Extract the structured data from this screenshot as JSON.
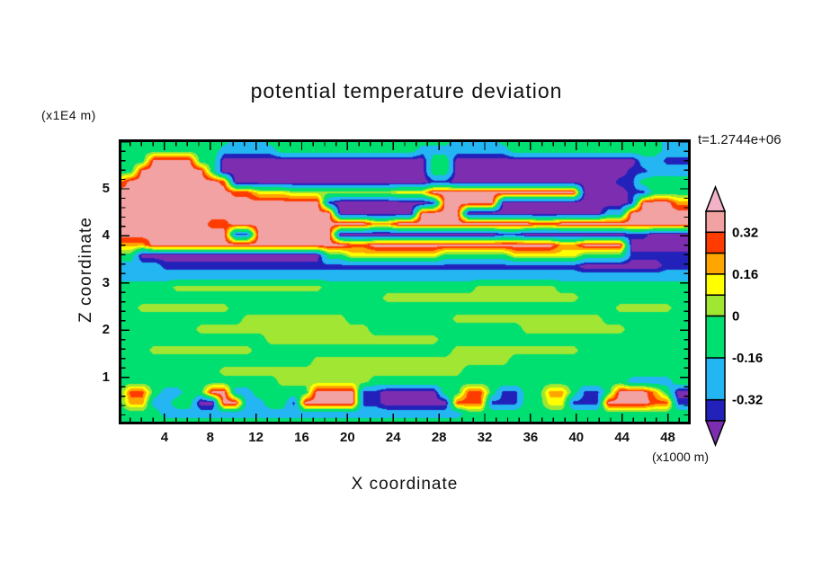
{
  "title": "potential temperature deviation",
  "annotations": {
    "z_unit": "(x1E4 m)",
    "x_unit": "(x1000 m)",
    "time": "t=1.2744e+06"
  },
  "axes": {
    "x_label": "X coordinate",
    "z_label": "Z coordinate",
    "x_range": [
      0,
      50
    ],
    "z_range": [
      0,
      6.05
    ],
    "x_major_ticks": [
      4,
      8,
      12,
      16,
      20,
      24,
      28,
      32,
      36,
      40,
      44,
      48
    ],
    "x_minor_step": 1,
    "z_major_ticks": [
      5,
      4,
      3,
      2,
      1
    ],
    "z_minor_step": 0.2
  },
  "chart_data": {
    "type": "heatmap",
    "title": "potential temperature deviation",
    "xlabel": "X coordinate (x1000 m)",
    "ylabel": "Z coordinate (x1E4 m)",
    "time_stamp": "t=1.2744e+06",
    "x_range": [
      0,
      50
    ],
    "z_range": [
      0,
      6.05
    ],
    "contour_levels": [
      -0.4,
      -0.32,
      -0.16,
      0,
      0.08,
      0.16,
      0.24,
      0.32,
      0.4
    ],
    "bands": [
      {
        "max": -0.4,
        "color": "#7D2EB0"
      },
      {
        "max": -0.32,
        "color": "#2222BB"
      },
      {
        "max": -0.16,
        "color": "#23B6F2"
      },
      {
        "max": 0.0,
        "color": "#00E070"
      },
      {
        "max": 0.08,
        "color": "#A0E632"
      },
      {
        "max": 0.16,
        "color": "#FFFF00"
      },
      {
        "max": 0.24,
        "color": "#FFA500"
      },
      {
        "max": 0.32,
        "color": "#FF3C00"
      },
      {
        "max": 0.4,
        "color": "#F2A2A2"
      },
      {
        "max": 9.0,
        "color": "#F2B3C8"
      }
    ],
    "colorbar": {
      "top_cap_color": "#F2B3C8",
      "bottom_cap_color": "#7D2EB0",
      "segments_top_to_bottom": [
        {
          "color": "#F2A2A2",
          "units": 1,
          "range": "0.32..0.40"
        },
        {
          "color": "#FF3C00",
          "units": 1,
          "range": "0.24..0.32"
        },
        {
          "color": "#FFA500",
          "units": 1,
          "range": "0.16..0.24"
        },
        {
          "color": "#FFFF00",
          "units": 1,
          "range": "0.08..0.16"
        },
        {
          "color": "#A0E632",
          "units": 1,
          "range": "0.00..0.08"
        },
        {
          "color": "#00E070",
          "units": 2,
          "range": "-0.16..0.00"
        },
        {
          "color": "#23B6F2",
          "units": 2,
          "range": "-0.32..-0.16"
        },
        {
          "color": "#2222BB",
          "units": 1,
          "range": "-0.40..-0.32"
        }
      ],
      "tick_labels": [
        {
          "text": "0.32",
          "units_from_top": 1
        },
        {
          "text": "0.16",
          "units_from_top": 3
        },
        {
          "text": "0",
          "units_from_top": 5
        },
        {
          "text": "-0.16",
          "units_from_top": 7
        },
        {
          "text": "-0.32",
          "units_from_top": 9
        }
      ]
    },
    "grid": {
      "note": "theta-deviation field, 50 columns (x=1..50 x1000 m) by 28 rows (top z=6.05 to bottom z=0 x1E4 m); letters map to values via value_key",
      "value_key": {
        "P": -0.46,
        "N": -0.36,
        "C": -0.24,
        "G": -0.06,
        "g": 0.04,
        "Y": 0.12,
        "O": 0.2,
        "R": 0.28,
        "S": 0.37,
        "K": 0.45
      },
      "rows": [
        "GGGGGGGGGGCCCGGGGGGGGGGGGGGGGCCCCGGGGGGGGGGGGGGCCC",
        "GGGGGGGGGCCCCCGGGGGGGGGGGGCCCCCCCCGGGGGGGGGGGGGCCC",
        "GGGSSSSGGPPPPPPPPPPPPPPPPPPGGPPPPPPPPPPPPPPPPCCNNN",
        "GGSSSSSSGPPPPPPPPPPPPPPPPPPGGPPPPPPPPPPPPPPPNNCCCC",
        "OSSSSSSSSRPPPPPPPPPPPPPPPPPNNPPPPPPPPPPPPPPNNGGGGG",
        "SSSSSSSSSSRRYYYgggggggggYYYSSSSSSSSSSSSSPPPPNNGGGG",
        "SSSSSSSSSSSSSSSSSSNPPPPPPPPNSSSSSPPPPPPPPPPPNSSSOO",
        "SSSSSSSSSSSSSSSSSSSPPPPPPPSSSSPPPPPPPPPPPPCCSSSSSS",
        "SSSSSSSSRRSSSSSSSSSSSSOOSSSSSSSSSSSSRRSSSSSSSSSSSS",
        "SSSSSSSSSSNNSSSSSSSPPPPPPPPPPPPPPNNPPPPPPPPPNNPPPP",
        "OOOSSSSSSSSSSSSSSSSSRRSSSSSSSSSSSSSSSSOOSSSSPPPPPP",
        "GGPPPPPPPPPPPPPPPPGGYYYYYYYYGGGGGGYYYYYYGGGGNNNNNN",
        "CCCCNNNNNNNNNNNNNNNNNNNNNNNNNNNNNNNNNNNNPPPPPPPNNN",
        "CCCCCCCCCCCCCCCCCCCCCCCCCCCCCCCCCCCCCCCCCCCCCCCCCC",
        "GGGGGgggggggggggggGGGGGGGGGGGGGgggggggGGGGGGGGGGGG",
        "GGGGGGGGGGGGGGGGGGGGGGGgggggggggggggggggGGGGGGGGGG",
        "GGggggggggGGGGGGGGGGGGGGGGGGGGGGGGGGGGGGGGGgggggGG",
        "GGGGGGGGGGGgggggggggGGGGGGGGGgggggggggggggGGGGGGGG",
        "GGGGGGGgggggggggggggggGGGGGGGGGGGGGgggggggggGGGGGG",
        "GGGGGGGGGGGGGgggggggggggggggGGGGGGGGGGGGGGGGGGGGGG",
        "GGGgggggggggGGGGGGGGGGGGGGGGGgggggggggggGGGGGGGGGG",
        "GGGGGGGGGGGGGGGGGgggggggggggggggggGGGGGGGGGGGGGGGG",
        "GGGGGGGGGgggggggggggggggggggggGGGGGGGGGGGGGGGGGGGG",
        "GGGGGGGGGGGGGGggggggggGGGGGGGGGGGGGGGGGGGGGGCCCCGG",
        "GRRGCCGGSSCCGGGGGSSSSNNPPPPPGGRRGNNGGOOGNNGSSSOGPP",
        "GOOCCGGPPSSCCGGNSSSSSNNPPPPPPRRRNNNGGYYNNNSSSSRRNN",
        "GGGGCCCCCCCCCCCCCCCCCCCCCCCCCCGGGGGGGGGGGGGGGGGGGG",
        "GGGGGGGGGGGGGGGGGGGGGGGGGGGGGGGGGGGGGGGGGGGGGGGGGG"
      ]
    }
  }
}
